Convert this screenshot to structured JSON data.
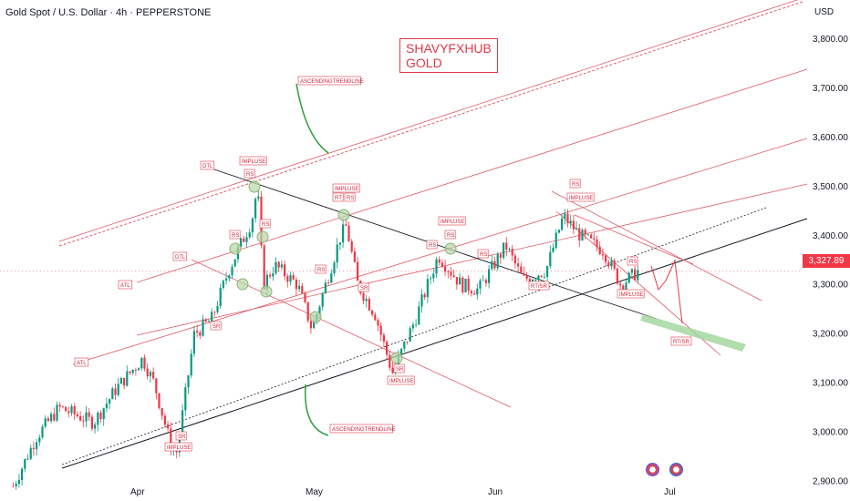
{
  "header": {
    "title": "Gold Spot / U.S. Dollar · 4h · PEPPERSTONE",
    "currency": "USD"
  },
  "brand": {
    "line1": "SHAVYFXHUB",
    "line2": "GOLD"
  },
  "last_price": "3,327.89",
  "colors": {
    "accent_red": "#f23645",
    "annotation_red": "#e0394a",
    "up_candle": "#089981",
    "down_candle": "#f23645",
    "trendline_green": "#2e9e3a",
    "zone_green": "#9fd49a"
  },
  "annotations": [
    {
      "id": "ascending-top",
      "text": "ASCENDINGTRENDLINE"
    },
    {
      "id": "ascending-bottom",
      "text": "ASCENDINGTRENDLINE"
    },
    {
      "id": "dtl1",
      "text": "DTL"
    },
    {
      "id": "dtl2",
      "text": "DTL"
    },
    {
      "id": "atl1",
      "text": "ATL"
    },
    {
      "id": "atl2",
      "text": "ATL"
    },
    {
      "id": "impulse1",
      "text": "IMPLUSE"
    },
    {
      "id": "rs1",
      "text": "RS"
    },
    {
      "id": "rs2",
      "text": "RS"
    },
    {
      "id": "rs3",
      "text": "RS"
    },
    {
      "id": "impulse2",
      "text": "IMPLUSE"
    },
    {
      "id": "rt1",
      "text": "RT"
    },
    {
      "id": "rs4",
      "text": "RS"
    },
    {
      "id": "rs5",
      "text": "RS"
    },
    {
      "id": "impulse3",
      "text": "IMPLUSE"
    },
    {
      "id": "rs6",
      "text": "RS"
    },
    {
      "id": "rs7",
      "text": "RS"
    },
    {
      "id": "rs8",
      "text": "RS"
    },
    {
      "id": "rs9",
      "text": "RS"
    },
    {
      "id": "impulse4",
      "text": "IMPLUSE"
    },
    {
      "id": "rs10",
      "text": "RS"
    },
    {
      "id": "sr1",
      "text": "SR"
    },
    {
      "id": "sr2",
      "text": "SR"
    },
    {
      "id": "sr3",
      "text": "SR"
    },
    {
      "id": "sr4",
      "text": "SR"
    },
    {
      "id": "rtsr1",
      "text": "RT/SR"
    },
    {
      "id": "rtsr2",
      "text": "RT/SR"
    },
    {
      "id": "impulse5",
      "text": "IMPLUSE"
    },
    {
      "id": "impulse6",
      "text": "IMPLUSE"
    },
    {
      "id": "impulse7",
      "text": "IMPLUSE"
    }
  ],
  "chart_data": {
    "type": "candlestick",
    "title": "Gold Spot / U.S. Dollar · 4h · PEPPERSTONE",
    "x_ticks": [
      "Apr",
      "May",
      "Jun",
      "Jul"
    ],
    "y_ticks": [
      "2,900.00",
      "3,000.00",
      "3,100.00",
      "3,200.00",
      "3,300.00",
      "3,400.00",
      "3,500.00",
      "3,600.00",
      "3,700.00",
      "3,800.00"
    ],
    "y_values": [
      2900,
      3000,
      3100,
      3200,
      3300,
      3400,
      3500,
      3600,
      3700,
      3800
    ],
    "ylim": [
      2860,
      3880
    ],
    "last_price": 3327.89,
    "price_path": [
      {
        "t": "Mar 10",
        "p": 2890
      },
      {
        "t": "Mar 14",
        "p": 2990
      },
      {
        "t": "Mar 18",
        "p": 3050
      },
      {
        "t": "Mar 24",
        "p": 3020
      },
      {
        "t": "Mar 28",
        "p": 3090
      },
      {
        "t": "Apr 2",
        "p": 3150
      },
      {
        "t": "Apr 4",
        "p": 3100
      },
      {
        "t": "Apr 7",
        "p": 2970
      },
      {
        "t": "Apr 8",
        "p": 2960
      },
      {
        "t": "Apr 11",
        "p": 3200
      },
      {
        "t": "Apr 14",
        "p": 3230
      },
      {
        "t": "Apr 17",
        "p": 3330
      },
      {
        "t": "Apr 21",
        "p": 3430
      },
      {
        "t": "Apr 22",
        "p": 3500
      },
      {
        "t": "Apr 23",
        "p": 3300
      },
      {
        "t": "Apr 25",
        "p": 3340
      },
      {
        "t": "Apr 29",
        "p": 3300
      },
      {
        "t": "May 1",
        "p": 3210
      },
      {
        "t": "May 6",
        "p": 3400
      },
      {
        "t": "May 7",
        "p": 3420
      },
      {
        "t": "May 9",
        "p": 3300
      },
      {
        "t": "May 12",
        "p": 3240
      },
      {
        "t": "May 15",
        "p": 3120
      },
      {
        "t": "May 19",
        "p": 3230
      },
      {
        "t": "May 23",
        "p": 3360
      },
      {
        "t": "May 27",
        "p": 3300
      },
      {
        "t": "May 30",
        "p": 3290
      },
      {
        "t": "Jun 3",
        "p": 3380
      },
      {
        "t": "Jun 6",
        "p": 3310
      },
      {
        "t": "Jun 10",
        "p": 3330
      },
      {
        "t": "Jun 13",
        "p": 3440
      },
      {
        "t": "Jun 16",
        "p": 3400
      },
      {
        "t": "Jun 20",
        "p": 3370
      },
      {
        "t": "Jun 23",
        "p": 3300
      },
      {
        "t": "Jun 26",
        "p": 3327.89
      }
    ]
  }
}
